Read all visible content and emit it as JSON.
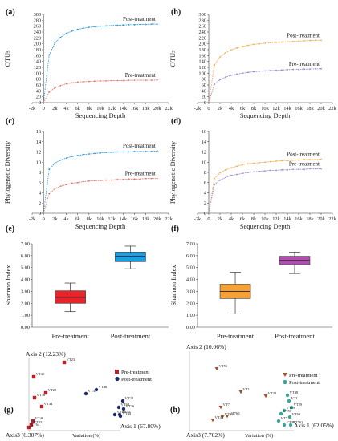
{
  "chart_data": [
    {
      "panel": "(a)",
      "type": "line",
      "ylabel": "OTUs",
      "xlabel": "Sequencing Depth",
      "xlim": [
        -2000,
        22000
      ],
      "ylim": [
        0,
        300
      ],
      "xticks": [
        "-2k",
        "0",
        "2k",
        "4k",
        "6k",
        "8k",
        "10k",
        "12k",
        "14k",
        "16k",
        "18k",
        "20k",
        "22k"
      ],
      "yticks": [
        0,
        20,
        40,
        60,
        80,
        100,
        120,
        140,
        160,
        180,
        200,
        220,
        240,
        260,
        280,
        300
      ],
      "grid": false,
      "series": [
        {
          "name": "Post-treatment",
          "color": "#2e9bd6",
          "dashed_rise": true,
          "x": [
            0,
            1000,
            2000,
            3000,
            4000,
            5000,
            6000,
            7000,
            8000,
            9000,
            10000,
            11000,
            12000,
            13000,
            14000,
            15000,
            16000,
            17000,
            18000,
            19000,
            20000
          ],
          "y": [
            0,
            162,
            202,
            222,
            235,
            243,
            249,
            253,
            256,
            258,
            260,
            261,
            262,
            263,
            264,
            265,
            265,
            266,
            266,
            267,
            267
          ]
        },
        {
          "name": "Pre-treatment",
          "color": "#e8746c",
          "dashed_rise": true,
          "x": [
            0,
            1000,
            2000,
            3000,
            4000,
            5000,
            6000,
            7000,
            8000,
            9000,
            10000,
            11000,
            12000,
            13000,
            14000,
            15000,
            16000,
            17000,
            18000,
            19000,
            20000
          ],
          "y": [
            0,
            36,
            50,
            58,
            64,
            67,
            70,
            71,
            72,
            73,
            74,
            74,
            75,
            75,
            75,
            76,
            76,
            76,
            76,
            76,
            77
          ]
        }
      ],
      "annotations": [
        "Post-treatment",
        "Pre-treatment"
      ]
    },
    {
      "panel": "(b)",
      "type": "line",
      "ylabel": "OTUs",
      "xlabel": "Sequencing Depth",
      "xlim": [
        -2000,
        22000
      ],
      "ylim": [
        0,
        300
      ],
      "xticks": [
        "-2k",
        "0",
        "2k",
        "4k",
        "6k",
        "8k",
        "10k",
        "12k",
        "14k",
        "16k",
        "18k",
        "20k",
        "22k"
      ],
      "yticks": [
        0,
        20,
        40,
        60,
        80,
        100,
        120,
        140,
        160,
        180,
        200,
        220,
        240,
        260,
        280,
        300
      ],
      "grid": false,
      "series": [
        {
          "name": "Post-treatment",
          "color": "#f5a94a",
          "dashed_rise": true,
          "x": [
            0,
            1000,
            2000,
            3000,
            4000,
            5000,
            6000,
            7000,
            8000,
            9000,
            10000,
            11000,
            12000,
            13000,
            14000,
            15000,
            16000,
            17000,
            18000,
            19000,
            20000
          ],
          "y": [
            0,
            128,
            155,
            170,
            179,
            186,
            191,
            195,
            198,
            200,
            202,
            204,
            205,
            206,
            207,
            208,
            209,
            210,
            211,
            212,
            212
          ]
        },
        {
          "name": "Pre-treatment",
          "color": "#9b86d4",
          "dashed_rise": true,
          "x": [
            0,
            1000,
            2000,
            3000,
            4000,
            5000,
            6000,
            7000,
            8000,
            9000,
            10000,
            11000,
            12000,
            13000,
            14000,
            15000,
            16000,
            17000,
            18000,
            19000,
            20000
          ],
          "y": [
            0,
            62,
            78,
            87,
            93,
            97,
            100,
            103,
            105,
            107,
            108,
            109,
            110,
            111,
            112,
            113,
            113,
            114,
            114,
            115,
            115
          ]
        }
      ],
      "annotations": [
        "Post-treatment",
        "Pre-treatment"
      ]
    },
    {
      "panel": "(c)",
      "type": "line",
      "ylabel": "Phylogenetic Diversity",
      "xlabel": "Sequencing Depth",
      "xlim": [
        -2000,
        22000
      ],
      "ylim": [
        0,
        16
      ],
      "xticks": [
        "-2k",
        "0",
        "2k",
        "4k",
        "6k",
        "8k",
        "10k",
        "12k",
        "14k",
        "16k",
        "18k",
        "20k",
        "22k"
      ],
      "yticks": [
        0,
        2,
        4,
        6,
        8,
        10,
        12,
        14,
        16
      ],
      "grid": false,
      "series": [
        {
          "name": "Post-treatment",
          "color": "#2e9bd6",
          "dashed_rise": true,
          "x": [
            0,
            1000,
            2000,
            3000,
            4000,
            5000,
            6000,
            7000,
            8000,
            9000,
            10000,
            11000,
            12000,
            13000,
            14000,
            15000,
            16000,
            17000,
            18000,
            19000,
            20000
          ],
          "y": [
            0,
            8.6,
            9.8,
            10.4,
            10.8,
            11.1,
            11.3,
            11.5,
            11.6,
            11.7,
            11.8,
            11.9,
            11.9,
            12.0,
            12.0,
            12.0,
            12.1,
            12.1,
            12.1,
            12.1,
            12.2
          ]
        },
        {
          "name": "Pre-treatment",
          "color": "#e8746c",
          "dashed_rise": true,
          "x": [
            0,
            1000,
            2000,
            3000,
            4000,
            5000,
            6000,
            7000,
            8000,
            9000,
            10000,
            11000,
            12000,
            13000,
            14000,
            15000,
            16000,
            17000,
            18000,
            19000,
            20000
          ],
          "y": [
            0,
            3.8,
            4.8,
            5.3,
            5.6,
            5.9,
            6.0,
            6.2,
            6.3,
            6.4,
            6.4,
            6.5,
            6.5,
            6.6,
            6.6,
            6.7,
            6.7,
            6.7,
            6.8,
            6.8,
            6.8
          ]
        }
      ],
      "annotations": [
        "Post-treatment",
        "Pre-treatment"
      ]
    },
    {
      "panel": "(d)",
      "type": "line",
      "ylabel": "Phylogenetic Diversity",
      "xlabel": "Sequencing Depth",
      "xlim": [
        -2000,
        22000
      ],
      "ylim": [
        0,
        16
      ],
      "xticks": [
        "-2k",
        "0",
        "2k",
        "4k",
        "6k",
        "8k",
        "10k",
        "12k",
        "14k",
        "16k",
        "18k",
        "20k",
        "22k"
      ],
      "yticks": [
        0,
        2,
        4,
        6,
        8,
        10,
        12,
        14,
        16
      ],
      "grid": false,
      "series": [
        {
          "name": "Post-treatment",
          "color": "#f5a94a",
          "dashed_rise": true,
          "x": [
            0,
            1000,
            2000,
            3000,
            4000,
            5000,
            6000,
            7000,
            8000,
            9000,
            10000,
            11000,
            12000,
            13000,
            14000,
            15000,
            16000,
            17000,
            18000,
            19000,
            20000
          ],
          "y": [
            0,
            6.8,
            7.9,
            8.5,
            8.9,
            9.2,
            9.5,
            9.7,
            9.8,
            9.9,
            10.0,
            10.1,
            10.2,
            10.3,
            10.3,
            10.4,
            10.4,
            10.5,
            10.5,
            10.5,
            10.6
          ]
        },
        {
          "name": "Pre-treatment",
          "color": "#9b86d4",
          "dashed_rise": true,
          "x": [
            0,
            1000,
            2000,
            3000,
            4000,
            5000,
            6000,
            7000,
            8000,
            9000,
            10000,
            11000,
            12000,
            13000,
            14000,
            15000,
            16000,
            17000,
            18000,
            19000,
            20000
          ],
          "y": [
            0,
            5.6,
            6.5,
            7.0,
            7.4,
            7.6,
            7.8,
            8.0,
            8.1,
            8.2,
            8.3,
            8.4,
            8.4,
            8.5,
            8.5,
            8.6,
            8.6,
            8.6,
            8.7,
            8.7,
            8.7
          ]
        }
      ],
      "annotations": [
        "Post-treatment",
        "Pre-treatment"
      ]
    },
    {
      "panel": "(e)",
      "type": "box",
      "ylabel": "Shannon Index",
      "ylim": [
        0,
        7
      ],
      "yticks": [
        "0.00",
        "1.00",
        "2.00",
        "3.00",
        "4.00",
        "5.00",
        "6.00",
        "7.00"
      ],
      "categories": [
        "Pre-treatment",
        "Post-treatment"
      ],
      "boxes": [
        {
          "name": "Pre-treatment",
          "color": "#e8232a",
          "min": 1.3,
          "q1": 2.0,
          "median": 2.5,
          "q3": 3.05,
          "max": 3.7
        },
        {
          "name": "Post-treatment",
          "color": "#1e9de0",
          "min": 4.9,
          "q1": 5.5,
          "median": 5.95,
          "q3": 6.3,
          "max": 6.8
        }
      ]
    },
    {
      "panel": "(f)",
      "type": "box",
      "ylabel": "Shannon Index",
      "ylim": [
        0,
        7
      ],
      "yticks": [
        "0.00",
        "1.00",
        "2.00",
        "3.00",
        "4.00",
        "5.00",
        "6.00",
        "7.00"
      ],
      "categories": [
        "Pre-treatment",
        "Post-treatment"
      ],
      "boxes": [
        {
          "name": "Pre-treatment",
          "color": "#f6a135",
          "min": 1.1,
          "q1": 2.4,
          "median": 3.0,
          "q3": 3.6,
          "max": 4.6
        },
        {
          "name": "Post-treatment",
          "color": "#b24fae",
          "min": 4.5,
          "q1": 5.25,
          "median": 5.6,
          "q3": 5.95,
          "max": 6.3
        }
      ]
    },
    {
      "panel": "(g)",
      "type": "scatter",
      "axis_labels": {
        "axis1": "Axis 1 (67.80%)",
        "axis2": "Axis 2 (12.23%)",
        "axis3": "Axis3 (6.307%)",
        "variation": "Variation (%)"
      },
      "legend": [
        "Pre-treatment",
        "Post-treatment"
      ],
      "legend_colors": [
        "#b8202a",
        "#1d2b6b"
      ],
      "points": [
        {
          "label": "VT23",
          "group": "Pre-treatment"
        },
        {
          "label": "VT41",
          "group": "Pre-treatment"
        },
        {
          "label": "VT22",
          "group": "Pre-treatment"
        },
        {
          "label": "VT36",
          "group": "Pre-treatment"
        },
        {
          "label": "VT44",
          "group": "Pre-treatment"
        },
        {
          "label": "VT46",
          "group": "Pre-treatment"
        },
        {
          "label": "VT64",
          "group": "Pre-treatment"
        },
        {
          "label": "VT43",
          "group": "Pre-treatment"
        },
        {
          "label": "VT46",
          "group": "Post-treatment"
        },
        {
          "label": "VT22",
          "group": "Post-treatment"
        },
        {
          "label": "VT36",
          "group": "Post-treatment"
        },
        {
          "label": "VT43",
          "group": "Post-treatment"
        },
        {
          "label": "VT41",
          "group": "Post-treatment"
        },
        {
          "label": "VT23",
          "group": "Post-treatment"
        },
        {
          "label": "VT44",
          "group": "Post-treatment"
        },
        {
          "label": "VT64",
          "group": "Post-treatment"
        }
      ]
    },
    {
      "panel": "(h)",
      "type": "scatter",
      "axis_labels": {
        "axis1": "Axis 1 (62.05%)",
        "axis2": "Axis 2 (10.06%)",
        "axis3": "Axis3 (7.702%)",
        "variation": "Variation (%)"
      },
      "legend": [
        "Pre-treatment",
        "Post-treatment"
      ],
      "legend_colors": [
        "#a0522d",
        "#3aa59a"
      ],
      "points": [
        {
          "label": "VT56",
          "group": "Pre-treatment"
        },
        {
          "label": "VT1",
          "group": "Pre-treatment"
        },
        {
          "label": "VT44",
          "group": "Pre-treatment"
        },
        {
          "label": "VT7",
          "group": "Pre-treatment"
        },
        {
          "label": "VT763",
          "group": "Pre-treatment"
        },
        {
          "label": "VT48",
          "group": "Pre-treatment"
        },
        {
          "label": "VT69",
          "group": "Pre-treatment"
        },
        {
          "label": "VT48",
          "group": "Post-treatment"
        },
        {
          "label": "VT1",
          "group": "Post-treatment"
        },
        {
          "label": "VT29",
          "group": "Post-treatment"
        },
        {
          "label": "VT29",
          "group": "Post-treatment"
        },
        {
          "label": "VT56",
          "group": "Post-treatment"
        },
        {
          "label": "VT69",
          "group": "Post-treatment"
        },
        {
          "label": "VT7",
          "group": "Post-treatment"
        },
        {
          "label": "VT763",
          "group": "Post-treatment"
        },
        {
          "label": "VT44",
          "group": "Post-treatment"
        }
      ]
    }
  ]
}
